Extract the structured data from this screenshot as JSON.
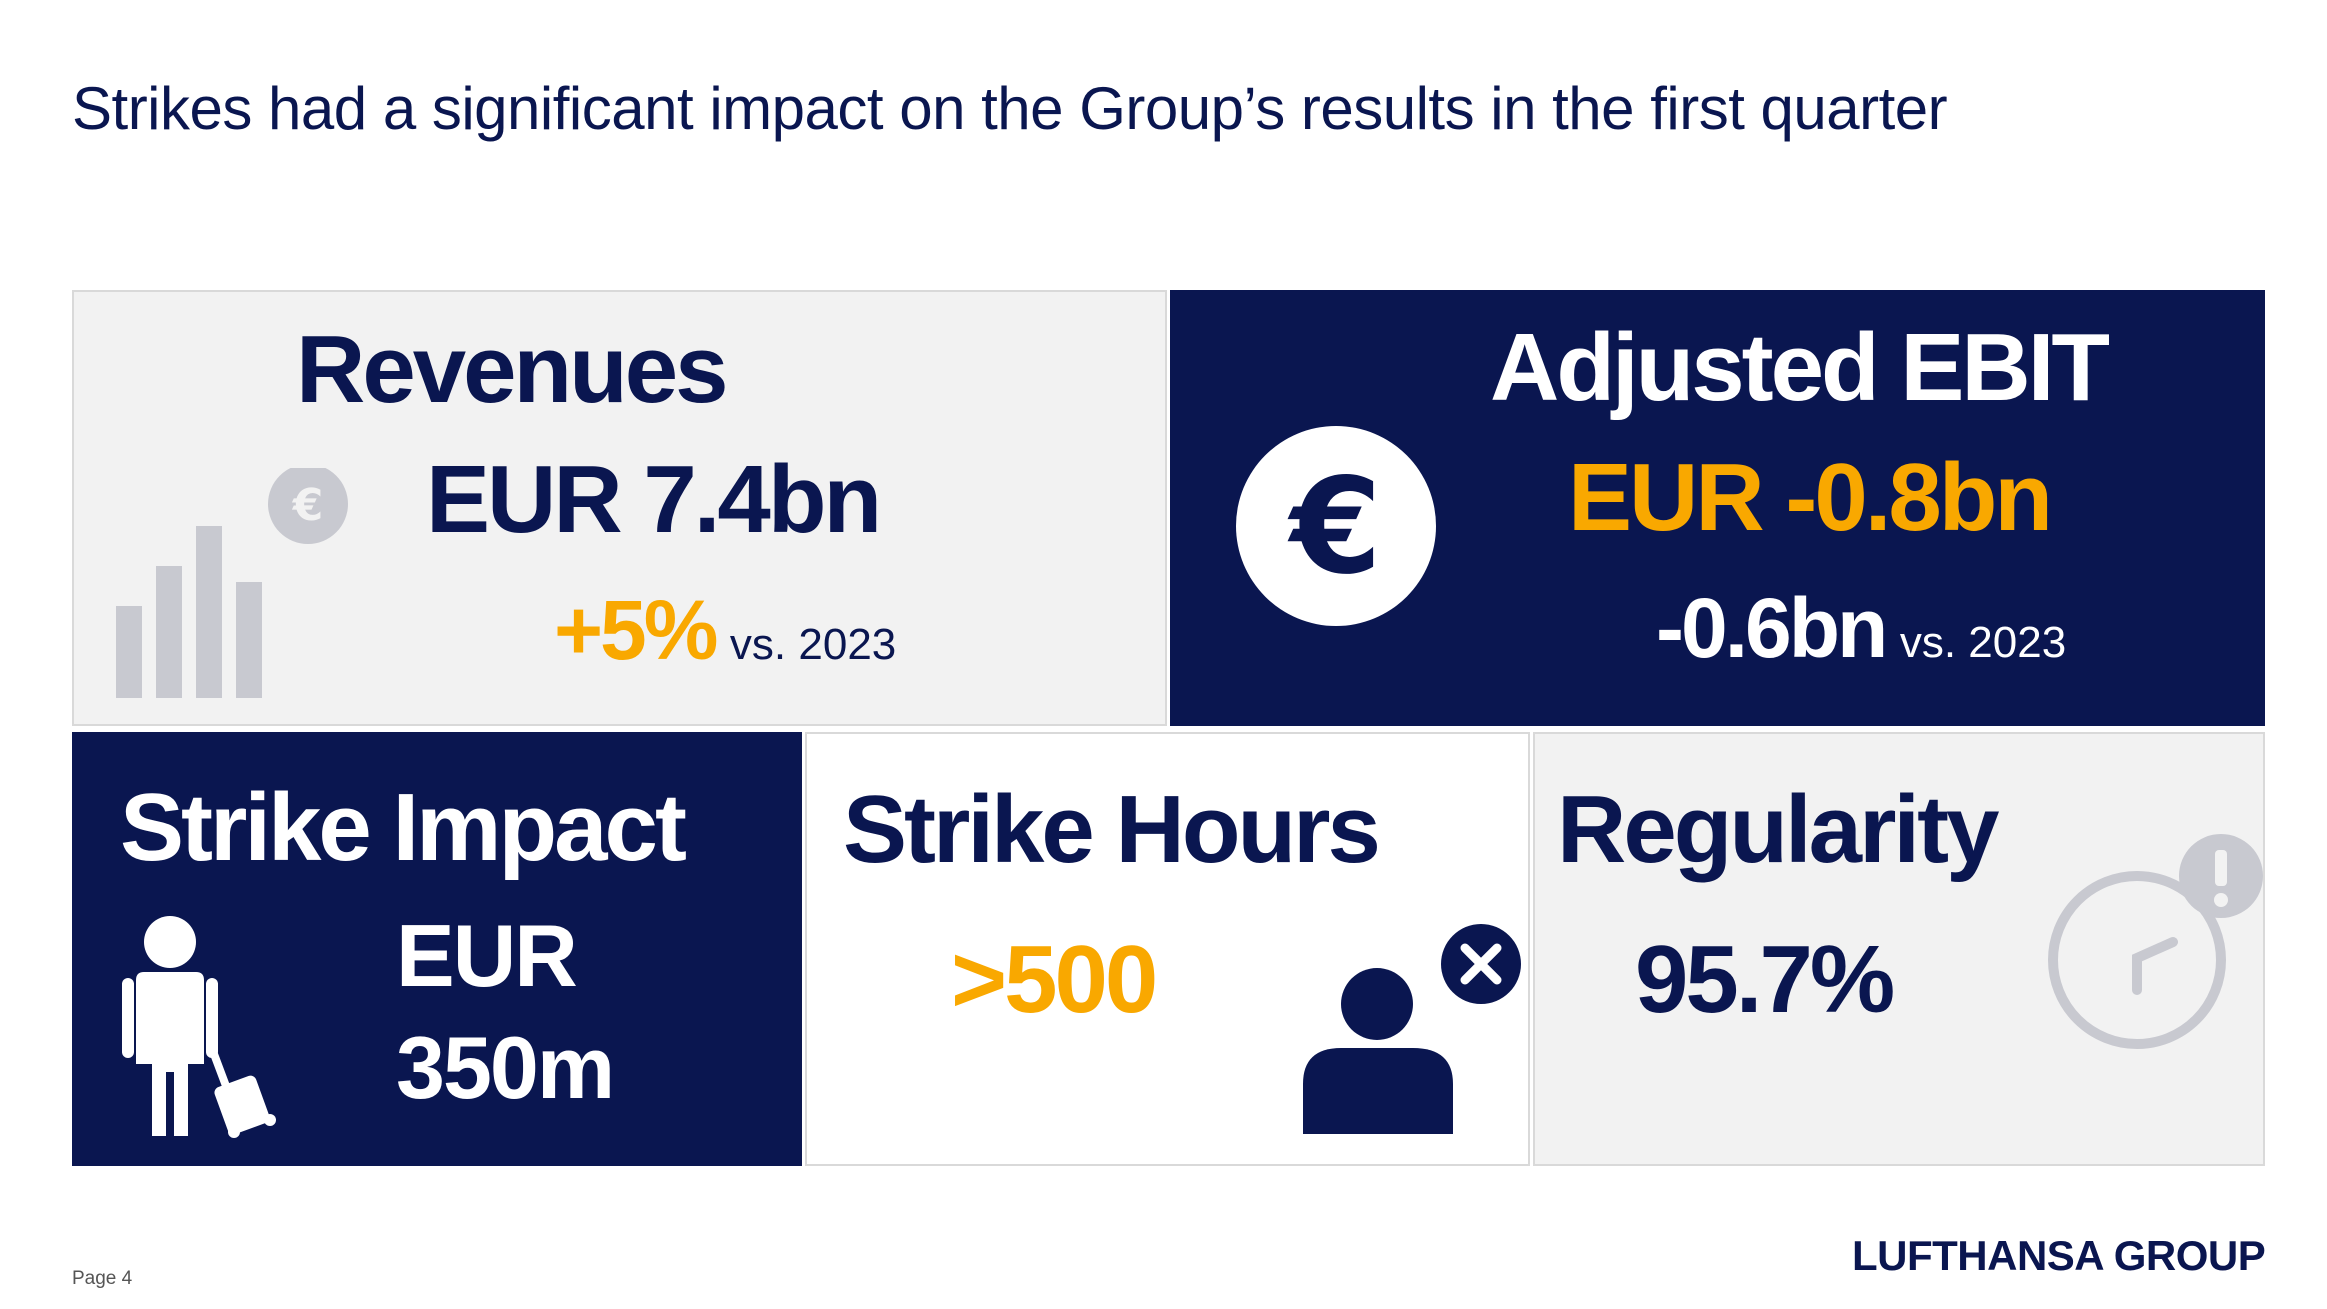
{
  "page": {
    "title": "Strikes had a significant impact on the Group’s results in the first quarter",
    "page_label": "Page 4",
    "logo_text": "LUFTHANSA GROUP"
  },
  "revenues": {
    "heading": "Revenues",
    "value": "EUR 7.4bn",
    "change": "+5%",
    "comparison": "vs. 2023",
    "icon": "bar-chart-euro-icon"
  },
  "ebit": {
    "heading": "Adjusted EBIT",
    "value": "EUR -0.8bn",
    "change": "-0.6bn",
    "comparison": "vs. 2023",
    "icon": "euro-coin-icon"
  },
  "strike_impact": {
    "heading": "Strike Impact",
    "value_line1": "EUR",
    "value_line2": "350m",
    "icon": "traveler-luggage-icon"
  },
  "strike_hours": {
    "heading": "Strike Hours",
    "value": ">500",
    "icon": "person-cancel-icon"
  },
  "regularity": {
    "heading": "Regularity",
    "value": "95.7%",
    "icon": "clock-alert-icon"
  },
  "colors": {
    "navy": "#0a1650",
    "orange": "#f9a800",
    "light_gray": "#f2f2f2",
    "icon_gray": "#c8c9d0"
  }
}
